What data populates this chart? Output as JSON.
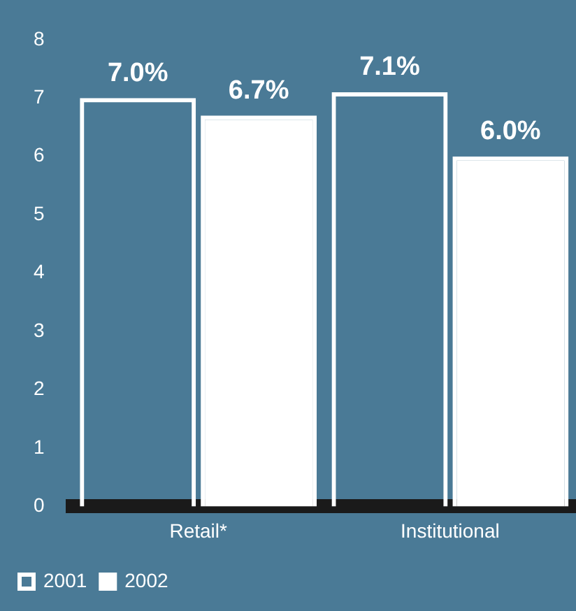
{
  "chart_data": {
    "type": "bar",
    "categories": [
      "Retail*",
      "Institutional"
    ],
    "series": [
      {
        "name": "2001",
        "color": "#ffffff",
        "values": [
          7.0,
          7.1
        ],
        "value_labels": [
          "7.0%",
          "7.1%"
        ]
      },
      {
        "name": "2002",
        "color": "#ffffff",
        "values": [
          6.7,
          6.0
        ],
        "value_labels": [
          "6.7%",
          "6.0%"
        ]
      }
    ],
    "ylim": [
      0,
      8
    ],
    "yticks": [
      0,
      1,
      2,
      3,
      4,
      5,
      6,
      7,
      8
    ],
    "grid": false,
    "legend": "bottom left"
  }
}
